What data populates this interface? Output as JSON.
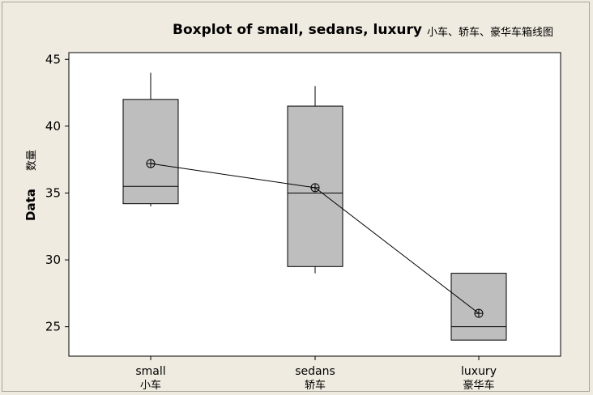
{
  "colors": {
    "box_fill": "#bebebe",
    "plot_bg": "#ffffff",
    "outer_bg": "#f0ebe0",
    "stroke": "#000000"
  },
  "chart_data": {
    "type": "boxplot",
    "title": "Boxplot of small, sedans, luxury",
    "title_cn": "小车、轿车、豪华车箱线图",
    "ylabel": "Data",
    "ylabel_cn": "数量",
    "ylim": [
      22.8,
      45.5
    ],
    "yticks": [
      25,
      30,
      35,
      40,
      45
    ],
    "categories": [
      {
        "name": "small",
        "name_cn": "小车"
      },
      {
        "name": "sedans",
        "name_cn": "轿车"
      },
      {
        "name": "luxury",
        "name_cn": "豪华车"
      }
    ],
    "boxes": [
      {
        "min": 34.0,
        "q1": 34.2,
        "median": 35.5,
        "q3": 42.0,
        "max": 44.0,
        "mean": 37.2
      },
      {
        "min": 29.0,
        "q1": 29.5,
        "median": 35.0,
        "q3": 41.5,
        "max": 43.0,
        "mean": 35.4
      },
      {
        "min": 24.0,
        "q1": 24.0,
        "median": 25.0,
        "q3": 29.0,
        "max": 29.0,
        "mean": 26.0
      }
    ],
    "mean_connect_line": true,
    "grid": false
  }
}
